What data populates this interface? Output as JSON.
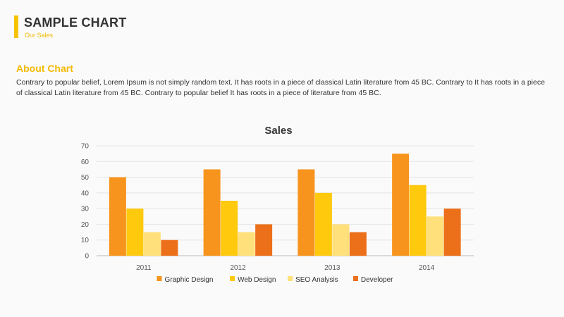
{
  "header": {
    "title": "SAMPLE CHART",
    "subtitle": "Our Sales"
  },
  "about": {
    "heading": "About Chart",
    "text": "Contrary to popular belief, Lorem Ipsum is not simply random text.  It has roots in a piece of classical Latin literature from 45 BC. Contrary to It has roots in a piece of classical Latin literature from 45 BC. Contrary to popular belief  It has roots in a piece of literature from 45 BC."
  },
  "chart_data": {
    "type": "bar",
    "title": "Sales",
    "categories": [
      "2011",
      "2012",
      "2013",
      "2014"
    ],
    "series": [
      {
        "name": "Graphic Design",
        "color": "#f7941d",
        "values": [
          50,
          55,
          55,
          65
        ]
      },
      {
        "name": "Web Design",
        "color": "#ffc90e",
        "values": [
          30,
          35,
          40,
          45
        ]
      },
      {
        "name": "SEO Analysis",
        "color": "#ffe07a",
        "values": [
          15,
          15,
          20,
          25
        ]
      },
      {
        "name": "Developer",
        "color": "#ec6f1a",
        "values": [
          10,
          20,
          15,
          30
        ]
      }
    ],
    "ylim": [
      0,
      70
    ],
    "yticks": [
      0,
      10,
      20,
      30,
      40,
      50,
      60,
      70
    ],
    "grid": true,
    "legend": "bottom",
    "xlabel": "",
    "ylabel": ""
  }
}
